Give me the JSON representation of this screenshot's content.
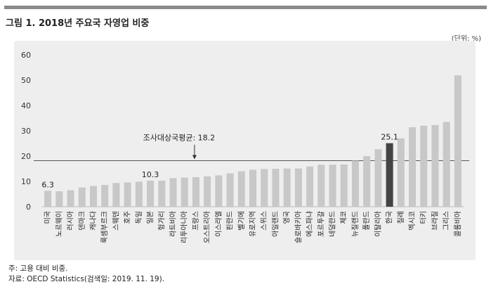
{
  "figure": {
    "title": "그림 1. 2018년 주요국 자영업 비중",
    "unit": "(단위: %)",
    "note": "주: 고용 대비 비중.",
    "source": "자료: OECD Statistics(검색일: 2019. 11. 19)."
  },
  "colors": {
    "bar": "#c8c8c8",
    "highlight": "#444444",
    "avg_line": "#555555"
  },
  "chart_data": {
    "type": "bar",
    "title": "",
    "xlabel": "",
    "ylabel": "",
    "ylim": [
      0,
      60
    ],
    "yticks": [
      0,
      10,
      20,
      30,
      40,
      50,
      60
    ],
    "grid": false,
    "categories": [
      "미국",
      "노르웨이",
      "러시아",
      "덴마크",
      "캐나다",
      "룩셈부르크",
      "스웨덴",
      "호주",
      "독일",
      "일본",
      "헝가리",
      "라트비아",
      "리투아니아",
      "프랑스",
      "오스트리아",
      "이스라엘",
      "핀란드",
      "벨기에",
      "유로지역",
      "스위스",
      "아일랜드",
      "영국",
      "슬로바키아",
      "에스파냐",
      "포르투갈",
      "네덜란드",
      "체코",
      "뉴질랜드",
      "폴란드",
      "이탈리아",
      "한국",
      "칠레",
      "멕시코",
      "터키",
      "브라질",
      "그리스",
      "콜롬비아"
    ],
    "values": [
      6.3,
      6.1,
      6.5,
      7.6,
      8.2,
      8.6,
      9.4,
      9.6,
      9.9,
      10.3,
      10.3,
      11.3,
      11.5,
      11.7,
      12.0,
      12.4,
      13.2,
      14.0,
      14.6,
      14.9,
      15.0,
      15.1,
      15.1,
      15.9,
      16.6,
      16.6,
      16.7,
      18.2,
      20.0,
      22.7,
      25.1,
      27.0,
      31.4,
      32.0,
      32.3,
      33.5,
      51.9
    ],
    "highlight": "한국",
    "data_labels": [
      {
        "category": "미국",
        "text": "6.3"
      },
      {
        "category": "일본",
        "text": "10.3"
      },
      {
        "category": "한국",
        "text": "25.1"
      }
    ],
    "average": {
      "label": "조사대상국평균: 18.2",
      "value": 18.2
    }
  }
}
